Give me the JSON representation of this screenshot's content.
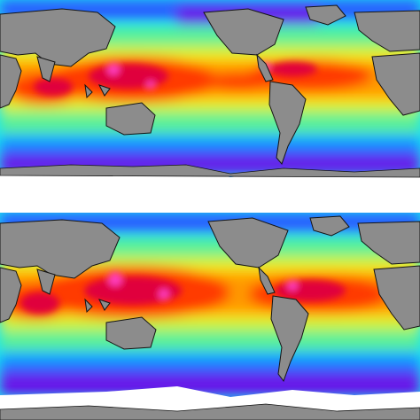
{
  "colors": {
    "land": "#8c8c8c",
    "ice": "#ffffff",
    "coast": "#141414",
    "background": "#ffffff"
  },
  "palette": [
    "#6a0fe8",
    "#8a2be2",
    "#2b5cff",
    "#00a8ff",
    "#19e6f0",
    "#58f09a",
    "#c8f23c",
    "#ffe000",
    "#ff9a00",
    "#ff3a00",
    "#e0003c",
    "#ff3cbe"
  ],
  "panels": [
    {
      "id": "top",
      "label": ""
    },
    {
      "id": "bottom",
      "label": ""
    }
  ]
}
